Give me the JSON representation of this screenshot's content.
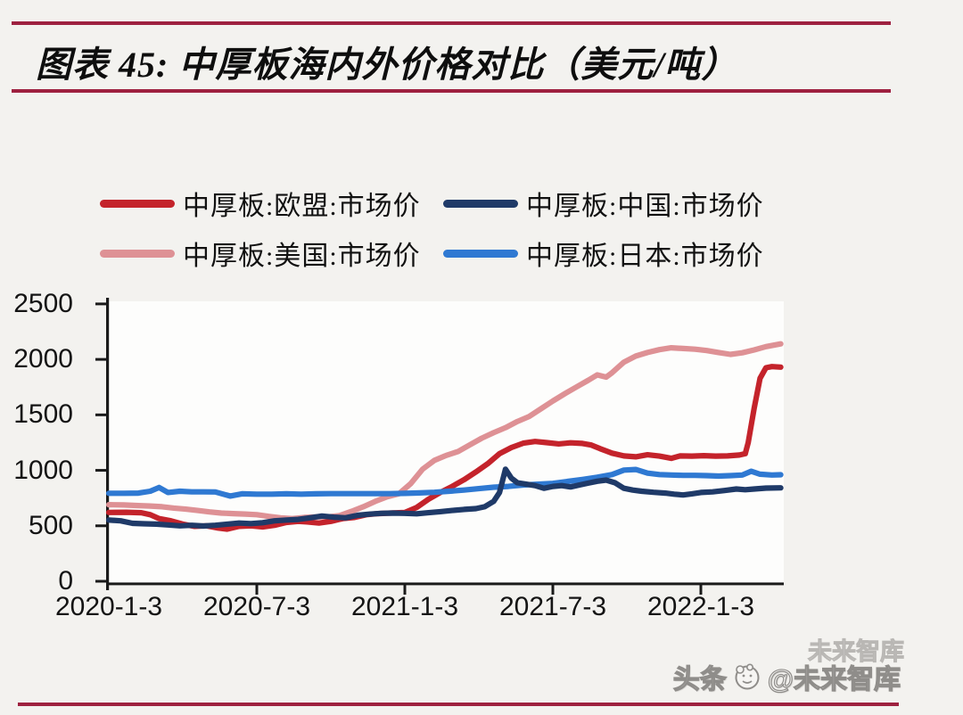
{
  "header": {
    "title": "图表 45:  中厚板海内外价格对比（美元/吨）"
  },
  "legend": {
    "items": [
      {
        "label": "中厚板:欧盟:市场价",
        "color": "#c4232b"
      },
      {
        "label": "中厚板:中国:市场价",
        "color": "#1f3a68"
      },
      {
        "label": "中厚板:美国:市场价",
        "color": "#de9195"
      },
      {
        "label": "中厚板:日本:市场价",
        "color": "#2f79d2"
      }
    ]
  },
  "watermark": {
    "prefix": "头条",
    "handle": "@未来智库",
    "ghost": "未来智库"
  },
  "chart_data": {
    "type": "line",
    "title": "中厚板海内外价格对比（美元/吨）",
    "xlabel": "",
    "ylabel": "",
    "ylim": [
      0,
      2500
    ],
    "yticks": [
      0,
      500,
      1000,
      1500,
      2000,
      2500
    ],
    "xtick_labels": [
      "2020-1-3",
      "2020-7-3",
      "2021-1-3",
      "2021-7-3",
      "2022-1-3"
    ],
    "xtick_t": [
      0,
      0.5,
      1.0,
      1.5,
      2.0
    ],
    "x_unit": "years since 2020-01-03",
    "grid": false,
    "legend_position": "top",
    "draw_order": [
      "中厚板:美国:市场价",
      "中厚板:欧盟:市场价",
      "中厚板:日本:市场价",
      "中厚板:中国:市场价"
    ],
    "series": [
      {
        "name": "中厚板:欧盟:市场价",
        "color": "#c4232b",
        "points": [
          [
            0.0,
            620
          ],
          [
            0.06,
            622
          ],
          [
            0.11,
            618
          ],
          [
            0.14,
            600
          ],
          [
            0.17,
            565
          ],
          [
            0.21,
            545
          ],
          [
            0.25,
            515
          ],
          [
            0.29,
            495
          ],
          [
            0.33,
            500
          ],
          [
            0.37,
            480
          ],
          [
            0.4,
            470
          ],
          [
            0.44,
            495
          ],
          [
            0.48,
            500
          ],
          [
            0.52,
            490
          ],
          [
            0.56,
            505
          ],
          [
            0.6,
            530
          ],
          [
            0.64,
            540
          ],
          [
            0.67,
            535
          ],
          [
            0.71,
            525
          ],
          [
            0.75,
            540
          ],
          [
            0.79,
            565
          ],
          [
            0.83,
            575
          ],
          [
            0.87,
            600
          ],
          [
            0.91,
            610
          ],
          [
            0.95,
            615
          ],
          [
            1.0,
            620
          ],
          [
            1.04,
            665
          ],
          [
            1.08,
            740
          ],
          [
            1.12,
            800
          ],
          [
            1.16,
            855
          ],
          [
            1.2,
            915
          ],
          [
            1.24,
            985
          ],
          [
            1.28,
            1060
          ],
          [
            1.32,
            1150
          ],
          [
            1.36,
            1205
          ],
          [
            1.4,
            1245
          ],
          [
            1.44,
            1260
          ],
          [
            1.48,
            1250
          ],
          [
            1.52,
            1238
          ],
          [
            1.56,
            1248
          ],
          [
            1.6,
            1242
          ],
          [
            1.63,
            1228
          ],
          [
            1.66,
            1195
          ],
          [
            1.7,
            1155
          ],
          [
            1.74,
            1130
          ],
          [
            1.78,
            1122
          ],
          [
            1.82,
            1140
          ],
          [
            1.86,
            1128
          ],
          [
            1.9,
            1108
          ],
          [
            1.93,
            1130
          ],
          [
            1.97,
            1128
          ],
          [
            2.01,
            1132
          ],
          [
            2.05,
            1128
          ],
          [
            2.09,
            1130
          ],
          [
            2.13,
            1138
          ],
          [
            2.15,
            1150
          ],
          [
            2.16,
            1250
          ],
          [
            2.18,
            1560
          ],
          [
            2.2,
            1830
          ],
          [
            2.22,
            1925
          ],
          [
            2.24,
            1935
          ],
          [
            2.27,
            1930
          ]
        ]
      },
      {
        "name": "中厚板:中国:市场价",
        "color": "#1f3a68",
        "points": [
          [
            0.0,
            552
          ],
          [
            0.04,
            545
          ],
          [
            0.08,
            522
          ],
          [
            0.12,
            518
          ],
          [
            0.16,
            515
          ],
          [
            0.2,
            508
          ],
          [
            0.24,
            500
          ],
          [
            0.28,
            505
          ],
          [
            0.32,
            498
          ],
          [
            0.36,
            505
          ],
          [
            0.4,
            515
          ],
          [
            0.44,
            525
          ],
          [
            0.48,
            520
          ],
          [
            0.52,
            528
          ],
          [
            0.56,
            545
          ],
          [
            0.6,
            552
          ],
          [
            0.64,
            558
          ],
          [
            0.68,
            572
          ],
          [
            0.72,
            588
          ],
          [
            0.76,
            578
          ],
          [
            0.8,
            572
          ],
          [
            0.84,
            595
          ],
          [
            0.88,
            605
          ],
          [
            0.92,
            612
          ],
          [
            0.96,
            615
          ],
          [
            1.0,
            612
          ],
          [
            1.04,
            608
          ],
          [
            1.08,
            618
          ],
          [
            1.12,
            628
          ],
          [
            1.16,
            638
          ],
          [
            1.2,
            648
          ],
          [
            1.24,
            655
          ],
          [
            1.27,
            672
          ],
          [
            1.3,
            720
          ],
          [
            1.32,
            800
          ],
          [
            1.34,
            1010
          ],
          [
            1.36,
            930
          ],
          [
            1.38,
            888
          ],
          [
            1.41,
            875
          ],
          [
            1.44,
            862
          ],
          [
            1.47,
            838
          ],
          [
            1.5,
            855
          ],
          [
            1.53,
            862
          ],
          [
            1.56,
            850
          ],
          [
            1.59,
            868
          ],
          [
            1.62,
            885
          ],
          [
            1.65,
            902
          ],
          [
            1.68,
            912
          ],
          [
            1.71,
            888
          ],
          [
            1.74,
            838
          ],
          [
            1.77,
            822
          ],
          [
            1.8,
            812
          ],
          [
            1.84,
            802
          ],
          [
            1.88,
            795
          ],
          [
            1.91,
            785
          ],
          [
            1.94,
            778
          ],
          [
            1.97,
            788
          ],
          [
            2.0,
            800
          ],
          [
            2.04,
            806
          ],
          [
            2.08,
            818
          ],
          [
            2.12,
            832
          ],
          [
            2.15,
            825
          ],
          [
            2.18,
            832
          ],
          [
            2.22,
            840
          ],
          [
            2.27,
            842
          ]
        ]
      },
      {
        "name": "中厚板:美国:市场价",
        "color": "#de9195",
        "points": [
          [
            0.0,
            690
          ],
          [
            0.05,
            688
          ],
          [
            0.1,
            682
          ],
          [
            0.14,
            678
          ],
          [
            0.18,
            672
          ],
          [
            0.22,
            660
          ],
          [
            0.26,
            650
          ],
          [
            0.3,
            638
          ],
          [
            0.34,
            625
          ],
          [
            0.38,
            615
          ],
          [
            0.42,
            610
          ],
          [
            0.46,
            606
          ],
          [
            0.5,
            600
          ],
          [
            0.54,
            585
          ],
          [
            0.58,
            572
          ],
          [
            0.62,
            565
          ],
          [
            0.66,
            575
          ],
          [
            0.7,
            580
          ],
          [
            0.74,
            580
          ],
          [
            0.78,
            592
          ],
          [
            0.82,
            630
          ],
          [
            0.86,
            672
          ],
          [
            0.9,
            720
          ],
          [
            0.94,
            762
          ],
          [
            0.98,
            788
          ],
          [
            1.02,
            880
          ],
          [
            1.06,
            1010
          ],
          [
            1.1,
            1090
          ],
          [
            1.14,
            1135
          ],
          [
            1.18,
            1170
          ],
          [
            1.22,
            1230
          ],
          [
            1.26,
            1290
          ],
          [
            1.3,
            1340
          ],
          [
            1.34,
            1385
          ],
          [
            1.38,
            1440
          ],
          [
            1.42,
            1485
          ],
          [
            1.46,
            1555
          ],
          [
            1.5,
            1625
          ],
          [
            1.54,
            1690
          ],
          [
            1.58,
            1752
          ],
          [
            1.62,
            1812
          ],
          [
            1.65,
            1860
          ],
          [
            1.68,
            1840
          ],
          [
            1.7,
            1880
          ],
          [
            1.74,
            1975
          ],
          [
            1.78,
            2030
          ],
          [
            1.82,
            2062
          ],
          [
            1.86,
            2088
          ],
          [
            1.9,
            2105
          ],
          [
            1.94,
            2098
          ],
          [
            1.98,
            2092
          ],
          [
            2.02,
            2080
          ],
          [
            2.06,
            2062
          ],
          [
            2.1,
            2045
          ],
          [
            2.14,
            2060
          ],
          [
            2.18,
            2085
          ],
          [
            2.22,
            2115
          ],
          [
            2.27,
            2140
          ]
        ]
      },
      {
        "name": "中厚板:日本:市场价",
        "color": "#2f79d2",
        "points": [
          [
            0.0,
            793
          ],
          [
            0.05,
            793
          ],
          [
            0.1,
            795
          ],
          [
            0.14,
            812
          ],
          [
            0.17,
            845
          ],
          [
            0.2,
            800
          ],
          [
            0.24,
            812
          ],
          [
            0.28,
            806
          ],
          [
            0.32,
            806
          ],
          [
            0.36,
            805
          ],
          [
            0.41,
            768
          ],
          [
            0.45,
            788
          ],
          [
            0.5,
            785
          ],
          [
            0.55,
            785
          ],
          [
            0.6,
            788
          ],
          [
            0.65,
            785
          ],
          [
            0.7,
            788
          ],
          [
            0.75,
            790
          ],
          [
            0.8,
            790
          ],
          [
            0.85,
            790
          ],
          [
            0.9,
            790
          ],
          [
            0.95,
            790
          ],
          [
            1.0,
            792
          ],
          [
            1.05,
            796
          ],
          [
            1.1,
            802
          ],
          [
            1.15,
            812
          ],
          [
            1.2,
            822
          ],
          [
            1.25,
            835
          ],
          [
            1.3,
            848
          ],
          [
            1.35,
            855
          ],
          [
            1.4,
            868
          ],
          [
            1.45,
            875
          ],
          [
            1.5,
            882
          ],
          [
            1.55,
            900
          ],
          [
            1.6,
            918
          ],
          [
            1.65,
            938
          ],
          [
            1.7,
            962
          ],
          [
            1.74,
            1002
          ],
          [
            1.78,
            1008
          ],
          [
            1.82,
            975
          ],
          [
            1.86,
            962
          ],
          [
            1.9,
            958
          ],
          [
            1.94,
            955
          ],
          [
            1.98,
            955
          ],
          [
            2.02,
            952
          ],
          [
            2.06,
            948
          ],
          [
            2.1,
            952
          ],
          [
            2.14,
            958
          ],
          [
            2.17,
            992
          ],
          [
            2.2,
            965
          ],
          [
            2.24,
            958
          ],
          [
            2.27,
            960
          ]
        ]
      }
    ]
  }
}
